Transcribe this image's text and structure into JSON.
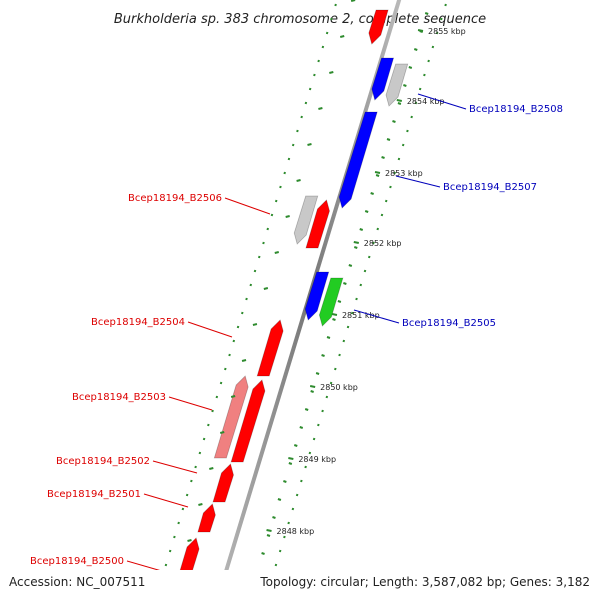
{
  "title": "Burkholderia sp. 383 chromosome 2, complete sequence",
  "footer": {
    "accession": "Accession: NC_007511",
    "summary": "Topology: circular; Length: 3,587,082 bp; Genes: 3,182"
  },
  "colors": {
    "red_gene": "#ff0000",
    "light_red_gene": "#f08080",
    "blue_gene": "#0000ff",
    "green_gene": "#22cc22",
    "gray_gene": "#c8c8c8",
    "backbone": "#888888",
    "tick": "#2e8b2e",
    "label_red": "#dd0000",
    "label_blue": "#0000bb"
  },
  "ticks": [
    {
      "label": "2855 kbp"
    },
    {
      "label": "2854 kbp"
    },
    {
      "label": "2853 kbp"
    },
    {
      "label": "2852 kbp"
    },
    {
      "label": "2851 kbp"
    },
    {
      "label": "2850 kbp"
    },
    {
      "label": "2849 kbp"
    },
    {
      "label": "2848 kbp"
    }
  ],
  "gene_labels": [
    {
      "text": "Bcep18194_B2508",
      "strand": "forward"
    },
    {
      "text": "Bcep18194_B2507",
      "strand": "forward"
    },
    {
      "text": "Bcep18194_B2506",
      "strand": "reverse"
    },
    {
      "text": "Bcep18194_B2505",
      "strand": "forward"
    },
    {
      "text": "Bcep18194_B2504",
      "strand": "reverse"
    },
    {
      "text": "Bcep18194_B2503",
      "strand": "reverse"
    },
    {
      "text": "Bcep18194_B2502",
      "strand": "reverse"
    },
    {
      "text": "Bcep18194_B2501",
      "strand": "reverse"
    },
    {
      "text": "Bcep18194_B2500",
      "strand": "reverse"
    }
  ]
}
